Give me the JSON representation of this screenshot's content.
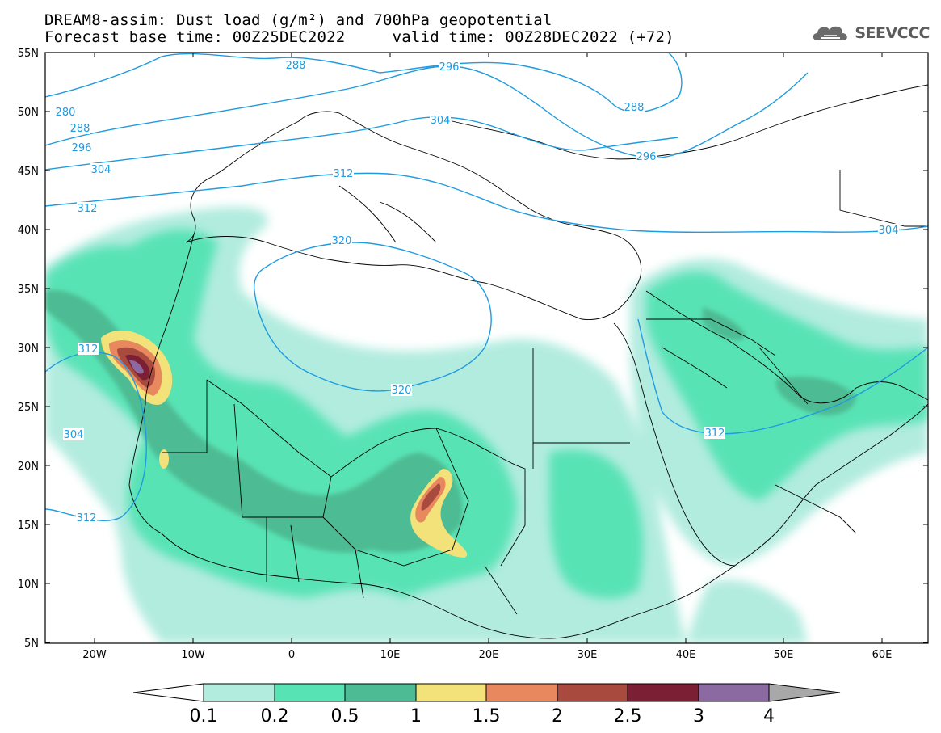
{
  "header": {
    "title_line1": "DREAM8-assim: Dust load (g/m²) and 700hPa geopotential",
    "title_line2": "Forecast base time: 00Z25DEC2022     valid time: 00Z28DEC2022 (+72)",
    "logo_text": "SEEVCCC"
  },
  "map": {
    "lat_labels": [
      "55N",
      "50N",
      "45N",
      "40N",
      "35N",
      "30N",
      "25N",
      "20N",
      "15N",
      "10N",
      "5N"
    ],
    "lon_labels": [
      "20W",
      "10W",
      "0",
      "10E",
      "20E",
      "30E",
      "40E",
      "50E",
      "60E"
    ],
    "contour_labels": [
      "288",
      "296",
      "288",
      "280",
      "288",
      "296",
      "304",
      "312",
      "304",
      "296",
      "312",
      "320",
      "320",
      "312",
      "312",
      "304",
      "304",
      "312"
    ],
    "colors": {
      "contour": "#1f9be0",
      "border": "#000000"
    }
  },
  "colorbar": {
    "tick_labels": [
      "0.1",
      "0.2",
      "0.5",
      "1",
      "1.5",
      "2",
      "2.5",
      "3",
      "4"
    ],
    "colors": [
      "#ffffff",
      "#b2ecdf",
      "#58e3b5",
      "#4dbb93",
      "#f3e27a",
      "#e8885f",
      "#a94a3f",
      "#7b1f34",
      "#8a6aa1",
      "#a8a8a8"
    ]
  }
}
